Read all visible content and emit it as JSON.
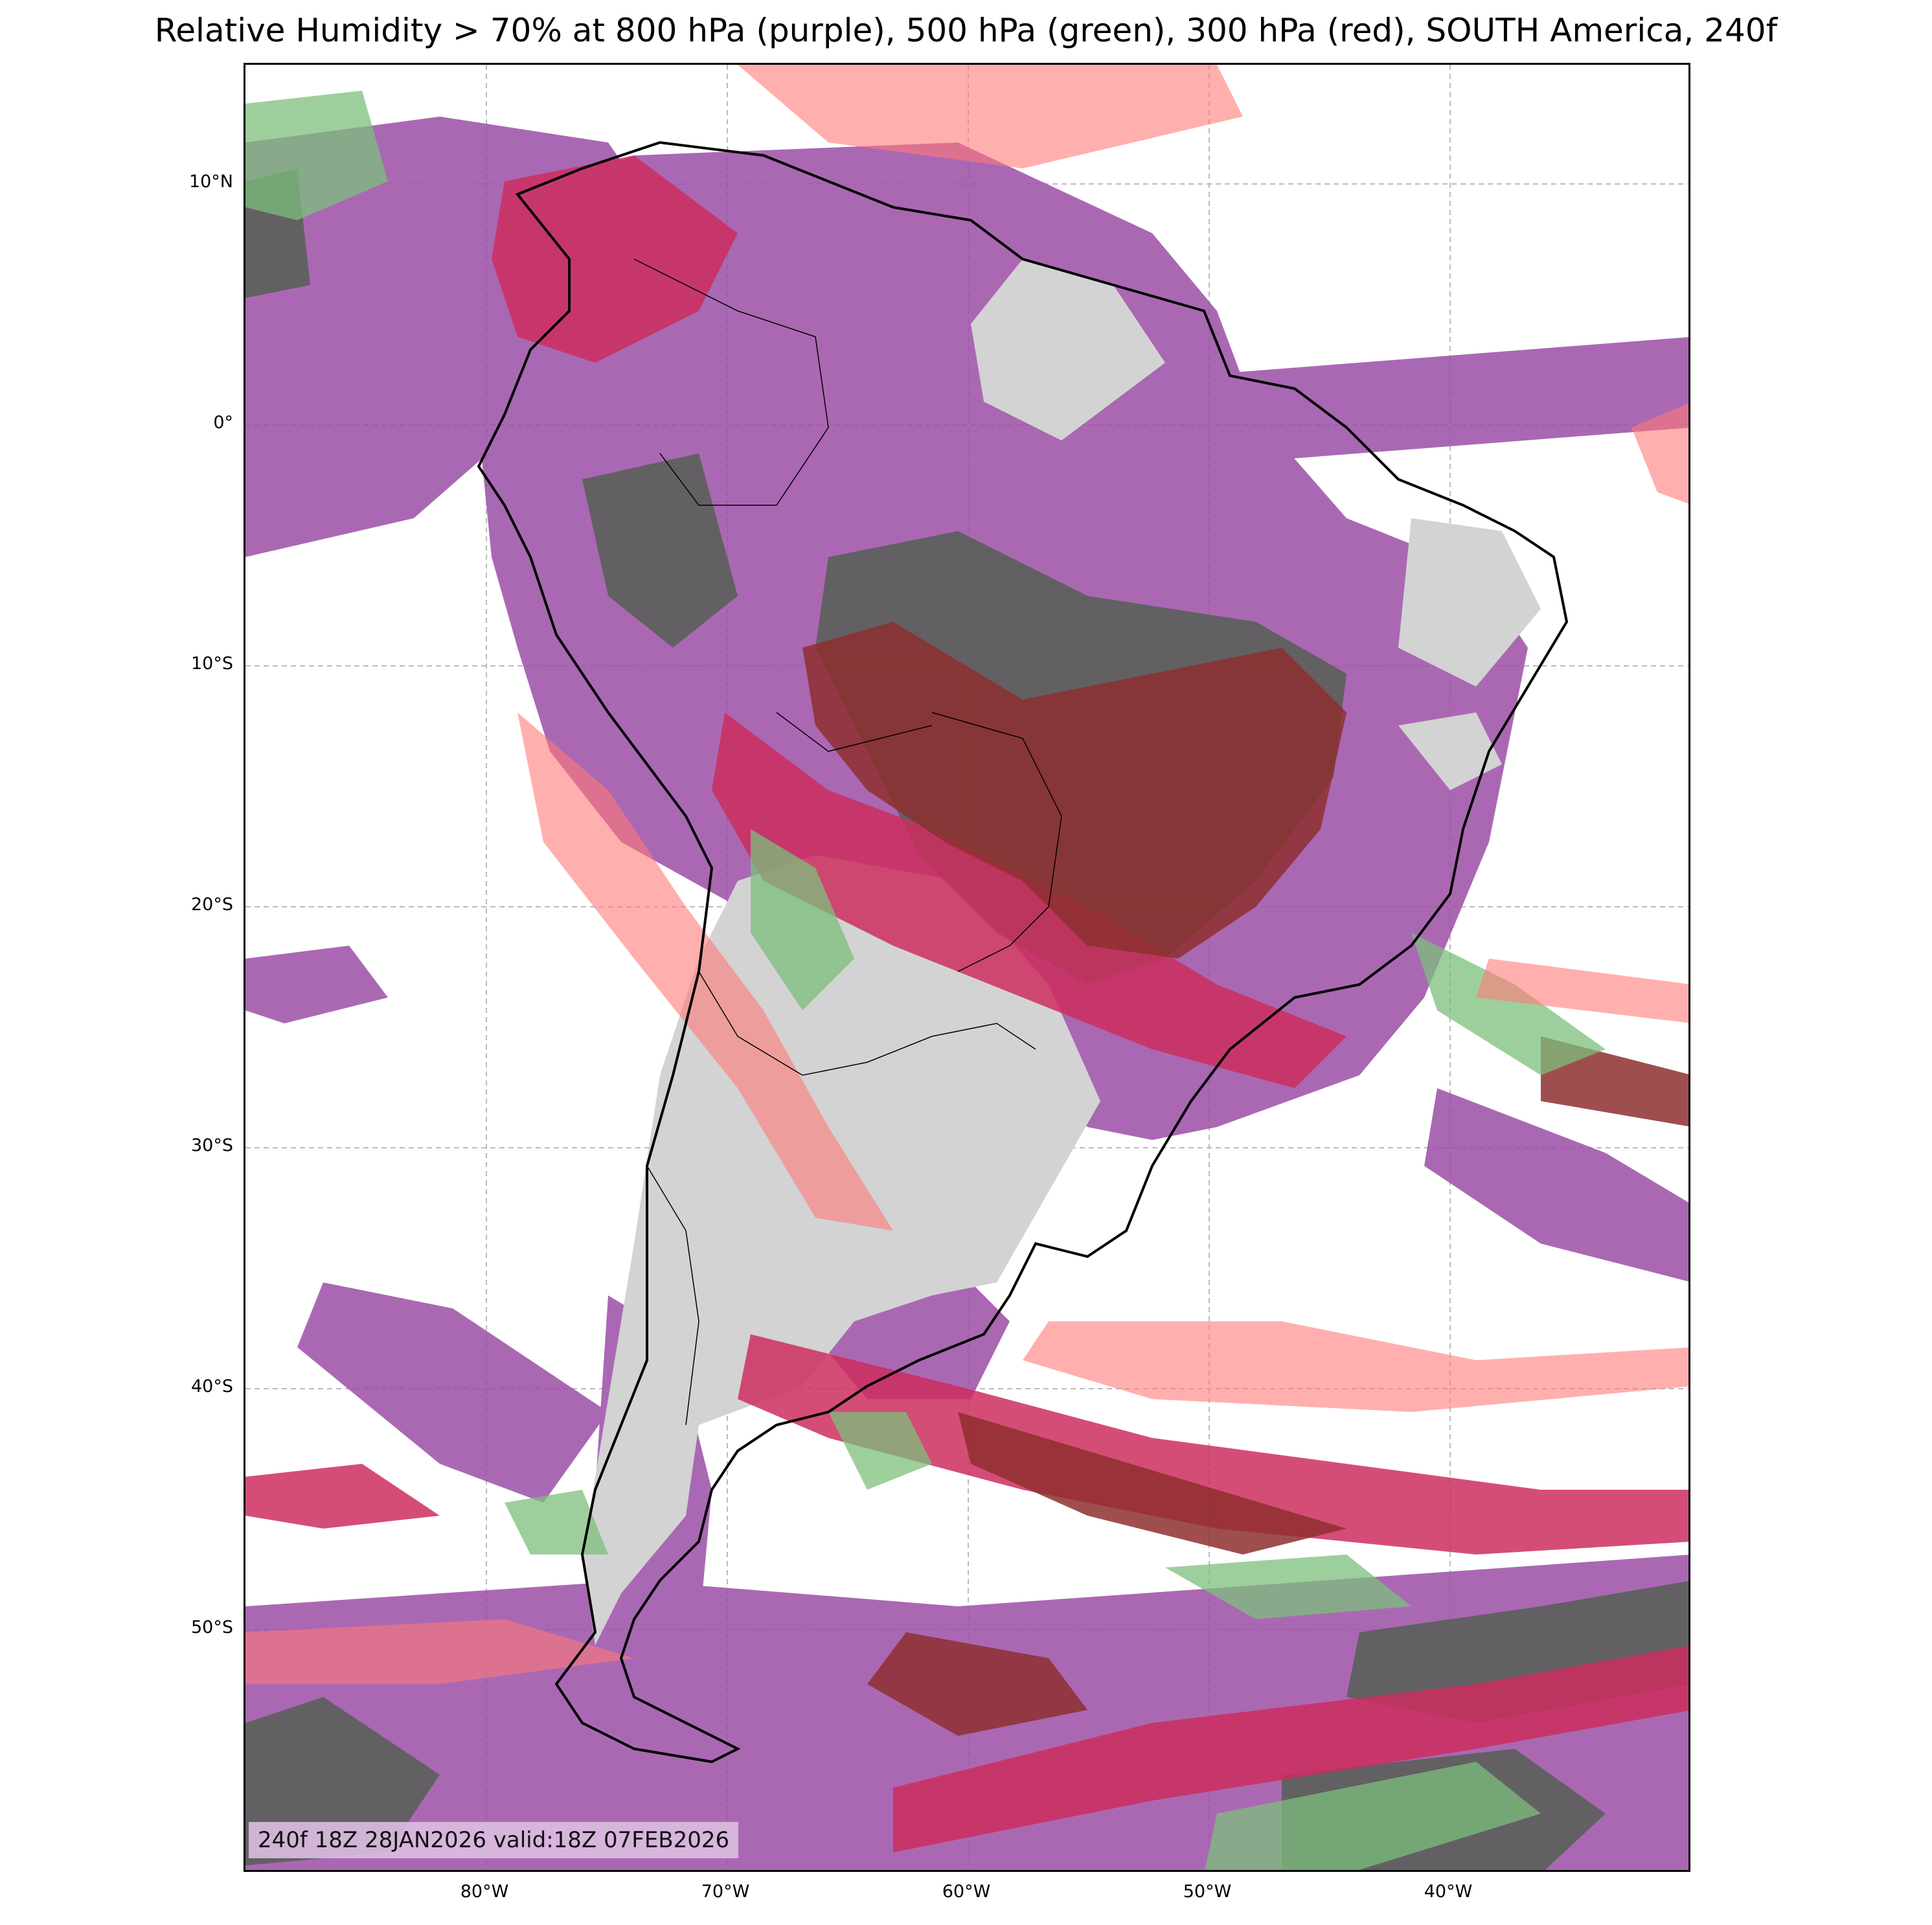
{
  "title": "Relative Humidity > 70% at 800 hPa (purple), 500 hPa (green), 300 hPa (red), SOUTH America, 240f",
  "axes": {
    "lat_labels": [
      "10°N",
      "0°",
      "10°S",
      "20°S",
      "30°S",
      "40°S",
      "50°S"
    ],
    "lon_labels": [
      "80°W",
      "70°W",
      "60°W",
      "50°W",
      "40°W"
    ]
  },
  "valid_stamp": "240f 18Z 28JAN2026 valid:18Z 07FEB2026",
  "colors": {
    "purple_800hPa": "#9b4ea6",
    "green_500hPa": "#7cbf7c",
    "red_300hPa": "#ff7a78",
    "land": "#d3d3d3",
    "overlap_dark": "#5a5f5a",
    "overlap_red": "#8e2f2f",
    "overlap_magenta": "#cc2e5e"
  },
  "map_data": {
    "region": "SOUTH America",
    "levels": [
      {
        "level": "800 hPa",
        "color": "purple",
        "threshold": "RH > 70%"
      },
      {
        "level": "500 hPa",
        "color": "green",
        "threshold": "RH > 70%"
      },
      {
        "level": "300 hPa",
        "color": "red",
        "threshold": "RH > 70%"
      }
    ],
    "lon_range": [
      -90,
      -30
    ],
    "lat_range": [
      -60,
      15
    ]
  }
}
